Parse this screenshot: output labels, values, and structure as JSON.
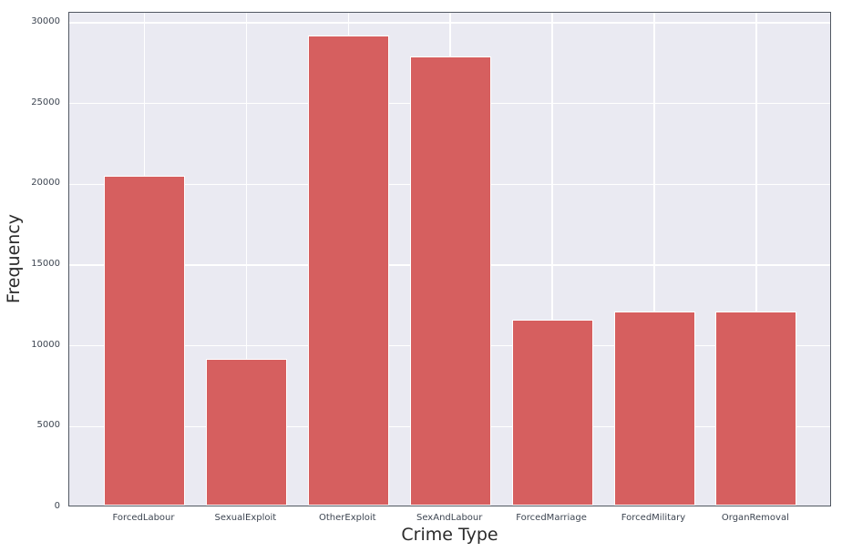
{
  "figure": {
    "background": "#ffffff",
    "plot_background": "#eaeaf2",
    "grid_color": "#ffffff",
    "spine_color": "#515862",
    "bar_color": "#d65f5f",
    "bar_edge_color": "#ffffff",
    "tick_label_color": "#3d4551",
    "axis_label_color": "#2b2b2b"
  },
  "chart_data": {
    "type": "bar",
    "title": "",
    "xlabel": "Crime Type",
    "ylabel": "Frequency",
    "categories": [
      "ForcedLabour",
      "SexualExploit",
      "OtherExploit",
      "SexAndLabour",
      "ForcedMarriage",
      "ForcedMilitary",
      "OrganRemoval"
    ],
    "values": [
      20400,
      9100,
      29100,
      27800,
      11500,
      12000,
      12000
    ],
    "ylim": [
      0,
      30620
    ],
    "yticks": [
      0,
      5000,
      10000,
      15000,
      20000,
      25000,
      30000
    ],
    "grid": true,
    "legend": false,
    "bar_color": "#d65f5f"
  }
}
